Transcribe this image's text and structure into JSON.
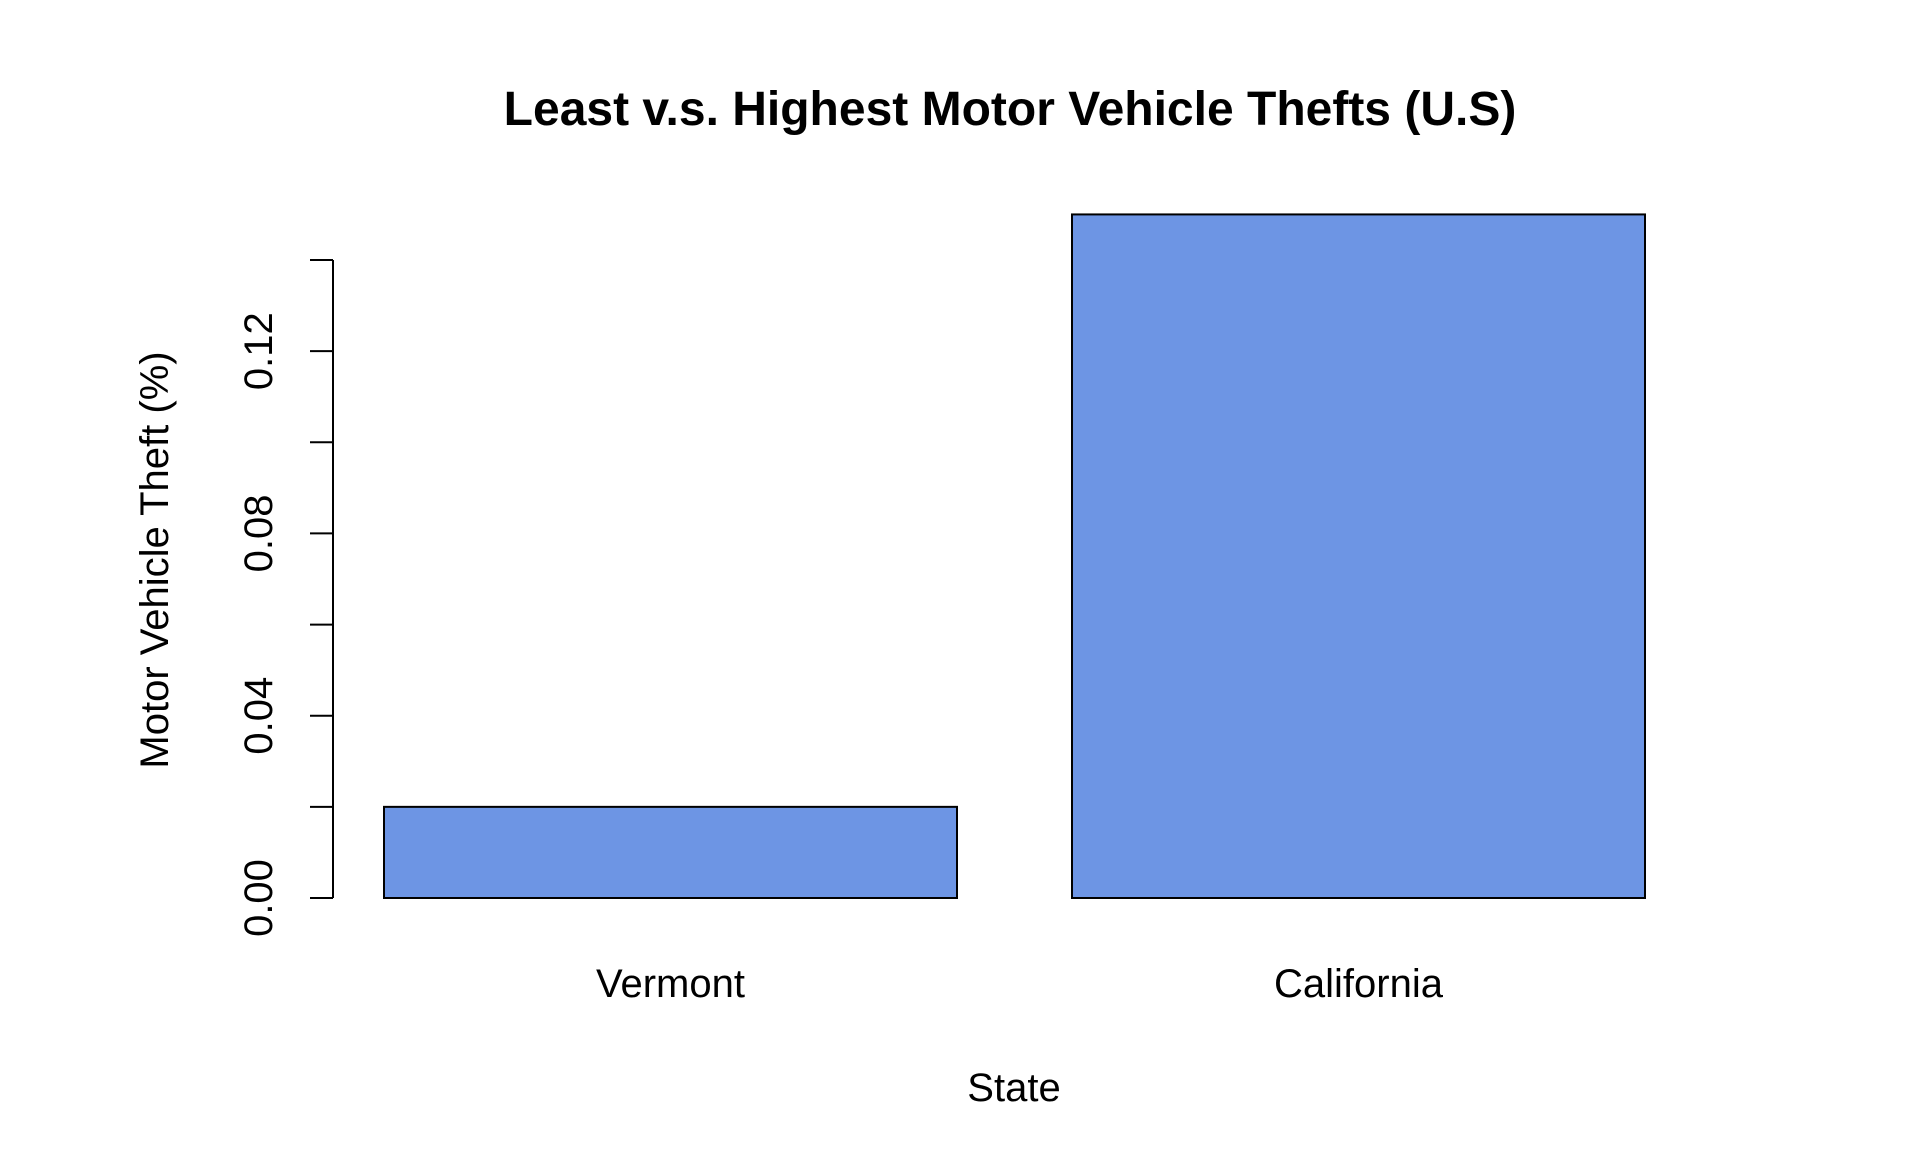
{
  "chart_data": {
    "type": "bar",
    "title": "Least v.s. Highest Motor Vehicle Thefts (U.S)",
    "xlabel": "State",
    "ylabel": "Motor Vehicle Theft (%)",
    "categories": [
      "Vermont",
      "California"
    ],
    "values": [
      0.02,
      0.15
    ],
    "ylim": [
      0,
      0.14
    ],
    "yticks": [
      0.0,
      0.02,
      0.04,
      0.06,
      0.08,
      0.1,
      0.12,
      0.14
    ],
    "ytick_labels": [
      "0.00",
      "",
      "0.04",
      "",
      "0.08",
      "",
      "0.12",
      ""
    ],
    "bar_color": "#6d95e4",
    "grid": false,
    "legend": "none"
  }
}
